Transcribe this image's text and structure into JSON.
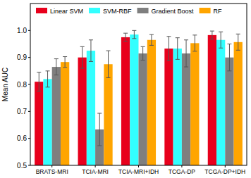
{
  "chart_data": {
    "type": "bar",
    "y_label": "Mean AUC",
    "categories": [
      "BRATS-MRI",
      "TCIA-MRI",
      "TCIA-MRI+IDH",
      "TCGA-DP",
      "TCGA-DP+IDH"
    ],
    "series": [
      {
        "name": "Linear SVM",
        "color": "#e8001c",
        "values": [
          0.81,
          0.9,
          0.975,
          0.933,
          0.983
        ],
        "errors": [
          0.035,
          0.04,
          0.015,
          0.045,
          0.015
        ]
      },
      {
        "name": "SVM-RBF",
        "color": "#33ffff",
        "values": [
          0.82,
          0.925,
          0.985,
          0.933,
          0.965
        ],
        "errors": [
          0.03,
          0.04,
          0.015,
          0.04,
          0.03
        ]
      },
      {
        "name": "Gradient Boost",
        "color": "#7f7f7f",
        "values": [
          0.865,
          0.633,
          0.915,
          0.915,
          0.9
        ],
        "errors": [
          0.03,
          0.06,
          0.025,
          0.05,
          0.05
        ]
      },
      {
        "name": "RF",
        "color": "#ffa500",
        "values": [
          0.883,
          0.875,
          0.965,
          0.953,
          0.957
        ],
        "errors": [
          0.02,
          0.05,
          0.02,
          0.03,
          0.03
        ]
      }
    ],
    "ylim": [
      0.5,
      1.1
    ],
    "yticks": [
      0.5,
      0.6,
      0.7,
      0.8,
      0.9,
      {
        "value": 1.0,
        "label": "1.0"
      }
    ],
    "grid": false,
    "legend": "top"
  }
}
